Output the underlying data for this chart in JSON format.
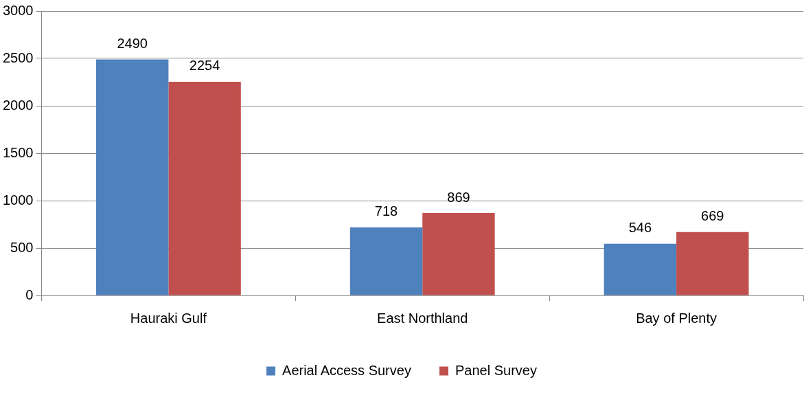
{
  "chart_data": {
    "type": "bar",
    "categories": [
      "Hauraki Gulf",
      "East Northland",
      "Bay of Plenty"
    ],
    "series": [
      {
        "name": "Aerial Access Survey",
        "color": "#4f81bd",
        "values": [
          2490,
          718,
          546
        ]
      },
      {
        "name": "Panel Survey",
        "color": "#c0504d",
        "values": [
          2254,
          869,
          669
        ]
      }
    ],
    "ylim": [
      0,
      3000
    ],
    "yticks": [
      0,
      500,
      1000,
      1500,
      2000,
      2500,
      3000
    ],
    "grid": "y",
    "legend": "bottom",
    "data_labels": true
  }
}
